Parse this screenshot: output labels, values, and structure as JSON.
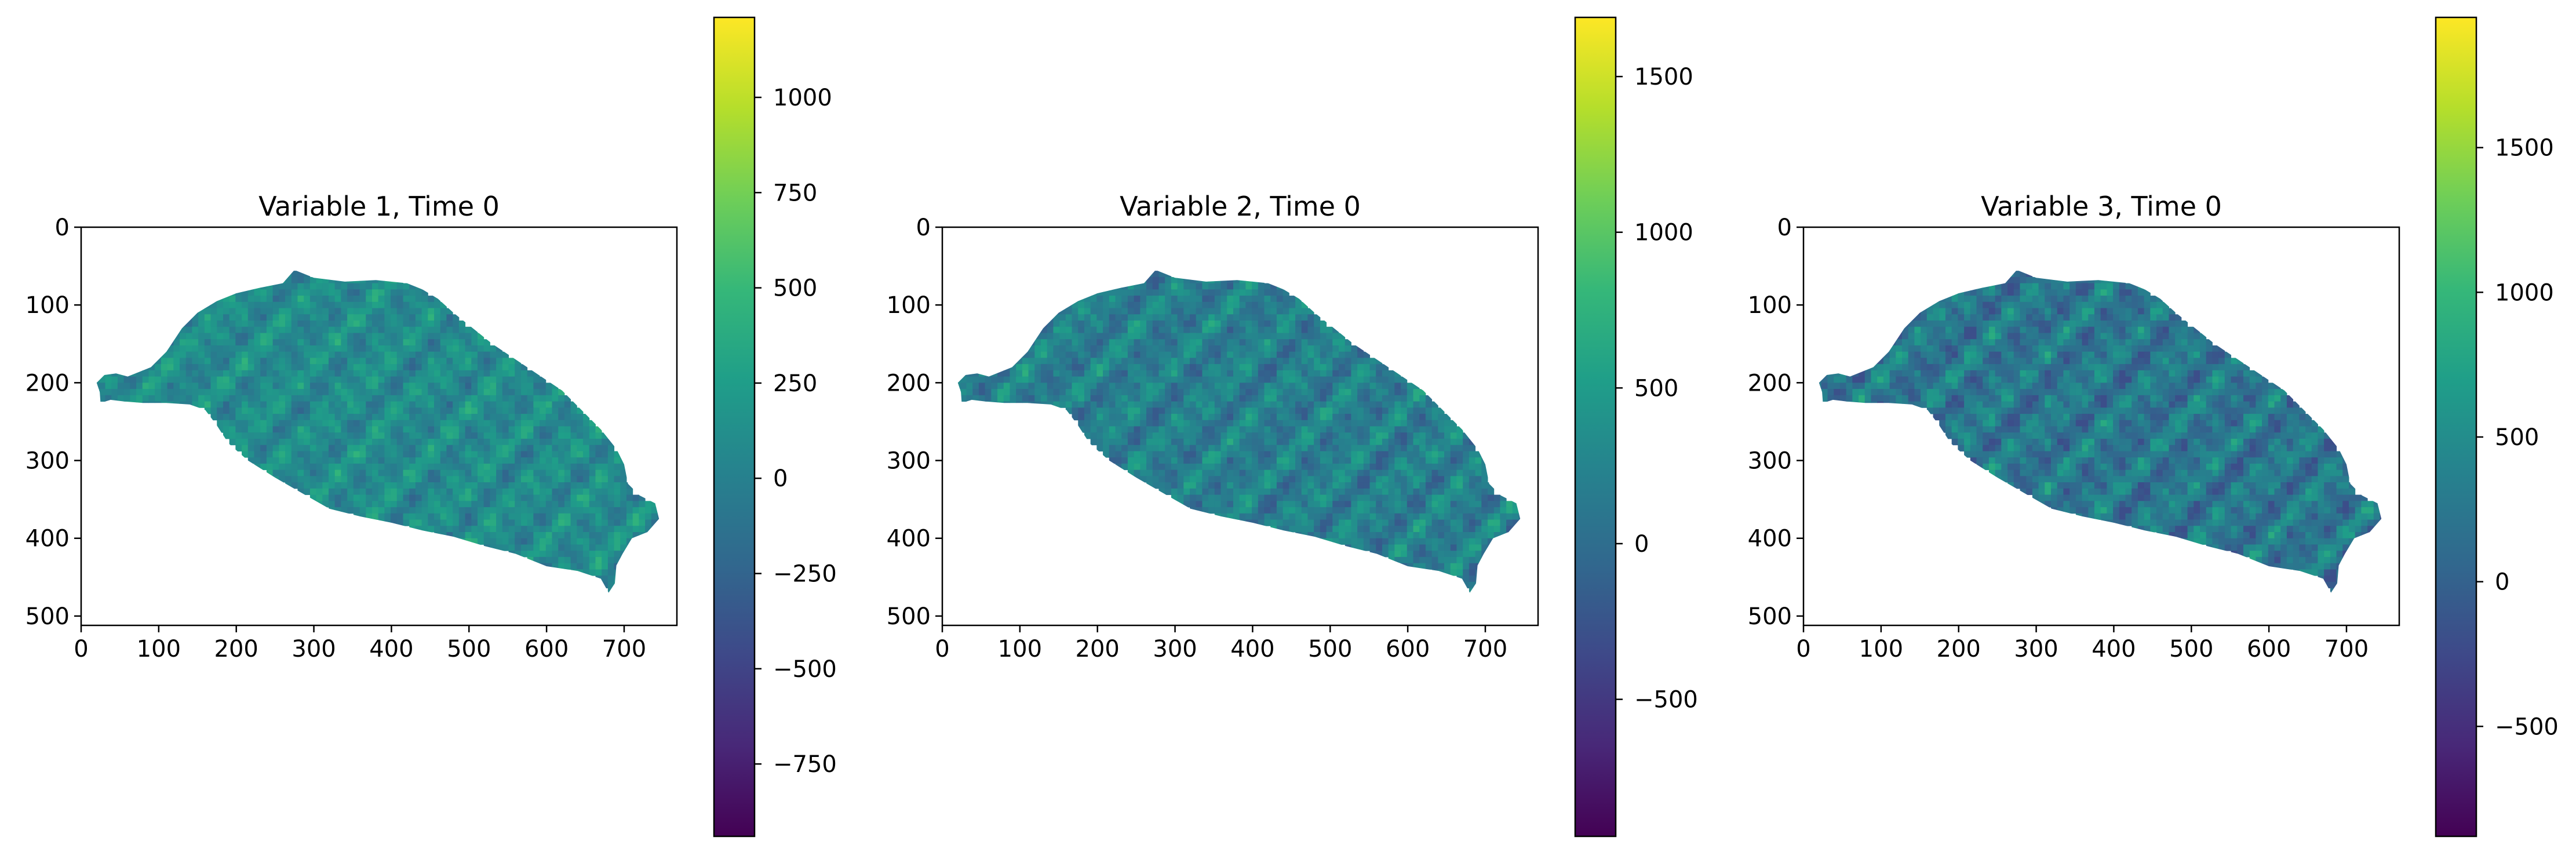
{
  "colormap": [
    "#440154",
    "#482878",
    "#3e4989",
    "#31688e",
    "#26828e",
    "#1f9e89",
    "#35b779",
    "#6ece58",
    "#b5de2b",
    "#fde725"
  ],
  "chart_data": [
    {
      "type": "heatmap",
      "title": "Variable 1, Time 0",
      "xlabel": "",
      "ylabel": "",
      "xlim": [
        0,
        768
      ],
      "ylim": [
        512,
        0
      ],
      "xticks": [
        0,
        100,
        200,
        300,
        400,
        500,
        600,
        700
      ],
      "yticks": [
        0,
        100,
        200,
        300,
        400,
        500
      ],
      "colorbar": {
        "min": -940,
        "max": 1210,
        "ticks": [
          -750,
          -500,
          -250,
          0,
          250,
          500,
          750,
          1000
        ]
      },
      "dominant_value": 100,
      "values_range_in_region": [
        -250,
        500
      ]
    },
    {
      "type": "heatmap",
      "title": "Variable 2, Time 0",
      "xlabel": "",
      "ylabel": "",
      "xlim": [
        0,
        768
      ],
      "ylim": [
        512,
        0
      ],
      "xticks": [
        0,
        100,
        200,
        300,
        400,
        500,
        600,
        700
      ],
      "yticks": [
        0,
        100,
        200,
        300,
        400,
        500
      ],
      "colorbar": {
        "min": -940,
        "max": 1690,
        "ticks": [
          -500,
          0,
          500,
          1000,
          1500
        ]
      },
      "dominant_value": 200,
      "values_range_in_region": [
        -200,
        900
      ]
    },
    {
      "type": "heatmap",
      "title": "Variable 3, Time 0",
      "xlabel": "",
      "ylabel": "",
      "xlim": [
        0,
        768
      ],
      "ylim": [
        512,
        0
      ],
      "xticks": [
        0,
        100,
        200,
        300,
        400,
        500,
        600,
        700
      ],
      "yticks": [
        0,
        100,
        200,
        300,
        400,
        500
      ],
      "colorbar": {
        "min": -880,
        "max": 1950,
        "ticks": [
          -500,
          0,
          500,
          1000,
          1500
        ]
      },
      "dominant_value": 250,
      "values_range_in_region": [
        -200,
        1100
      ]
    }
  ]
}
